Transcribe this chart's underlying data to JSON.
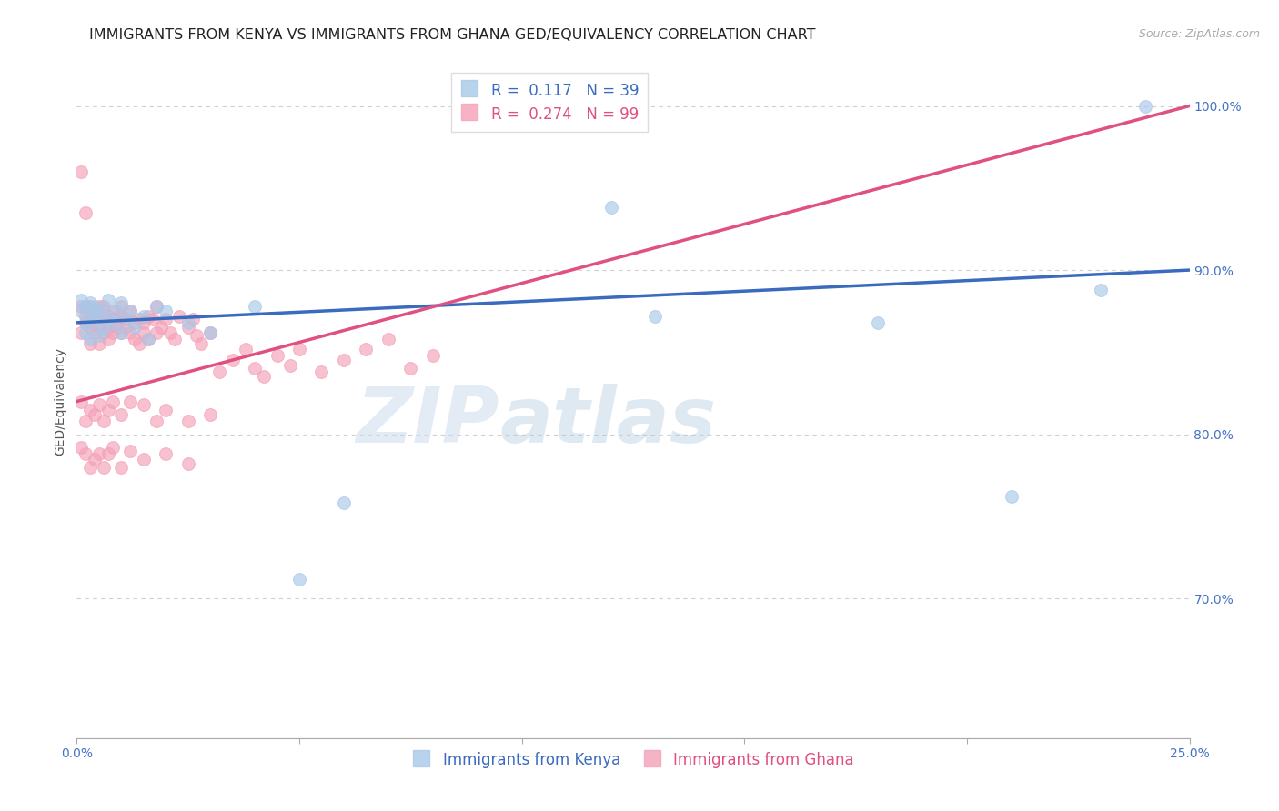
{
  "title": "IMMIGRANTS FROM KENYA VS IMMIGRANTS FROM GHANA GED/EQUIVALENCY CORRELATION CHART",
  "source_text": "Source: ZipAtlas.com",
  "ylabel": "GED/Equivalency",
  "xlim": [
    0.0,
    0.25
  ],
  "ylim": [
    0.615,
    1.025
  ],
  "xtick_vals": [
    0.0,
    0.05,
    0.1,
    0.15,
    0.2,
    0.25
  ],
  "xtick_labels": [
    "0.0%",
    "",
    "",
    "",
    "",
    "25.0%"
  ],
  "ytick_right": [
    0.7,
    0.8,
    0.9,
    1.0
  ],
  "ytick_right_labels": [
    "70.0%",
    "80.0%",
    "90.0%",
    "100.0%"
  ],
  "kenya_R": 0.117,
  "kenya_N": 39,
  "ghana_R": 0.274,
  "ghana_N": 99,
  "kenya_color": "#a8c8e8",
  "ghana_color": "#f4a0b8",
  "kenya_line_color": "#3a6bbf",
  "ghana_line_color": "#e05080",
  "ghana_dash_color": "#f0b0c8",
  "background_color": "#ffffff",
  "grid_color": "#d0d0d0",
  "title_fontsize": 11.5,
  "axis_label_fontsize": 10,
  "tick_fontsize": 10,
  "legend_fontsize": 12,
  "watermark": "ZIPatlas",
  "kenya_x": [
    0.001,
    0.001,
    0.002,
    0.002,
    0.002,
    0.003,
    0.003,
    0.003,
    0.004,
    0.004,
    0.004,
    0.005,
    0.005,
    0.006,
    0.006,
    0.007,
    0.007,
    0.008,
    0.009,
    0.01,
    0.01,
    0.011,
    0.012,
    0.013,
    0.015,
    0.016,
    0.018,
    0.02,
    0.025,
    0.03,
    0.04,
    0.05,
    0.06,
    0.12,
    0.13,
    0.18,
    0.21,
    0.23,
    0.24
  ],
  "kenya_y": [
    0.875,
    0.882,
    0.868,
    0.878,
    0.862,
    0.872,
    0.88,
    0.858,
    0.875,
    0.868,
    0.878,
    0.872,
    0.86,
    0.876,
    0.864,
    0.87,
    0.882,
    0.868,
    0.875,
    0.88,
    0.862,
    0.87,
    0.875,
    0.865,
    0.872,
    0.858,
    0.878,
    0.875,
    0.868,
    0.862,
    0.878,
    0.712,
    0.758,
    0.938,
    0.872,
    0.868,
    0.762,
    0.888,
    1.0
  ],
  "ghana_x": [
    0.001,
    0.001,
    0.001,
    0.002,
    0.002,
    0.002,
    0.002,
    0.003,
    0.003,
    0.003,
    0.003,
    0.004,
    0.004,
    0.004,
    0.005,
    0.005,
    0.005,
    0.005,
    0.006,
    0.006,
    0.006,
    0.007,
    0.007,
    0.007,
    0.008,
    0.008,
    0.008,
    0.009,
    0.009,
    0.01,
    0.01,
    0.01,
    0.011,
    0.011,
    0.012,
    0.012,
    0.013,
    0.013,
    0.014,
    0.014,
    0.015,
    0.015,
    0.016,
    0.016,
    0.017,
    0.018,
    0.018,
    0.019,
    0.02,
    0.021,
    0.022,
    0.023,
    0.025,
    0.026,
    0.027,
    0.028,
    0.03,
    0.032,
    0.035,
    0.038,
    0.04,
    0.042,
    0.045,
    0.048,
    0.05,
    0.055,
    0.06,
    0.065,
    0.07,
    0.075,
    0.08,
    0.001,
    0.002,
    0.003,
    0.004,
    0.005,
    0.006,
    0.007,
    0.008,
    0.01,
    0.012,
    0.015,
    0.018,
    0.02,
    0.025,
    0.03,
    0.001,
    0.002,
    0.003,
    0.004,
    0.005,
    0.006,
    0.007,
    0.008,
    0.01,
    0.012,
    0.015,
    0.02,
    0.025
  ],
  "ghana_y": [
    0.878,
    0.862,
    0.96,
    0.872,
    0.935,
    0.868,
    0.878,
    0.87,
    0.865,
    0.878,
    0.855,
    0.872,
    0.862,
    0.875,
    0.865,
    0.87,
    0.878,
    0.855,
    0.87,
    0.862,
    0.878,
    0.865,
    0.872,
    0.858,
    0.87,
    0.862,
    0.875,
    0.865,
    0.87,
    0.872,
    0.862,
    0.878,
    0.865,
    0.87,
    0.862,
    0.875,
    0.868,
    0.858,
    0.87,
    0.855,
    0.868,
    0.862,
    0.872,
    0.858,
    0.87,
    0.862,
    0.878,
    0.865,
    0.87,
    0.862,
    0.858,
    0.872,
    0.865,
    0.87,
    0.86,
    0.855,
    0.862,
    0.838,
    0.845,
    0.852,
    0.84,
    0.835,
    0.848,
    0.842,
    0.852,
    0.838,
    0.845,
    0.852,
    0.858,
    0.84,
    0.848,
    0.82,
    0.808,
    0.815,
    0.812,
    0.818,
    0.808,
    0.815,
    0.82,
    0.812,
    0.82,
    0.818,
    0.808,
    0.815,
    0.808,
    0.812,
    0.792,
    0.788,
    0.78,
    0.785,
    0.788,
    0.78,
    0.788,
    0.792,
    0.78,
    0.79,
    0.785,
    0.788,
    0.782
  ]
}
